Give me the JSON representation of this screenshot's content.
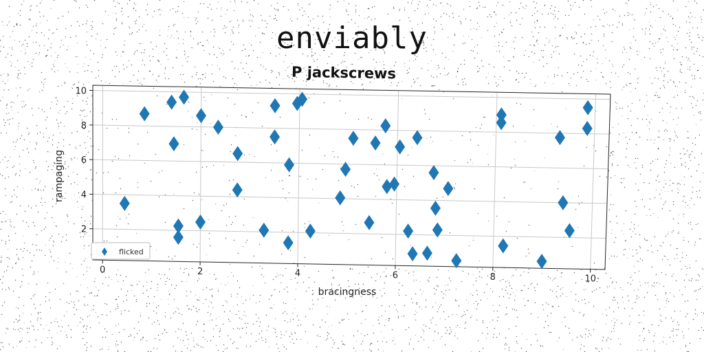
{
  "title": "enviably",
  "subtitle": "P jackscrews",
  "chart_data": {
    "type": "scatter",
    "xlabel": "bracingness",
    "ylabel": "rampaging",
    "xlim": [
      -0.2,
      10.3
    ],
    "ylim": [
      0.2,
      10.3
    ],
    "xticks": [
      0,
      2,
      4,
      6,
      8,
      10
    ],
    "yticks": [
      2,
      4,
      6,
      8,
      10
    ],
    "grid": true,
    "legend_position": "bottom-left",
    "series": [
      {
        "name": "flicked",
        "color": "#1f77b4",
        "marker": "diamond",
        "points": [
          [
            0.45,
            3.5
          ],
          [
            0.85,
            8.7
          ],
          [
            1.4,
            9.4
          ],
          [
            1.45,
            7.0
          ],
          [
            1.65,
            9.7
          ],
          [
            1.55,
            2.25
          ],
          [
            1.55,
            1.6
          ],
          [
            2.0,
            8.65
          ],
          [
            2.0,
            2.5
          ],
          [
            2.35,
            8.0
          ],
          [
            2.75,
            6.5
          ],
          [
            2.75,
            4.4
          ],
          [
            3.3,
            2.1
          ],
          [
            3.5,
            9.3
          ],
          [
            3.5,
            7.5
          ],
          [
            3.8,
            5.9
          ],
          [
            3.8,
            1.4
          ],
          [
            3.95,
            9.45
          ],
          [
            4.05,
            9.7
          ],
          [
            4.25,
            2.1
          ],
          [
            4.85,
            4.05
          ],
          [
            4.95,
            5.7
          ],
          [
            5.1,
            7.5
          ],
          [
            5.45,
            2.65
          ],
          [
            5.55,
            7.25
          ],
          [
            5.75,
            8.25
          ],
          [
            5.8,
            4.75
          ],
          [
            5.95,
            4.9
          ],
          [
            6.05,
            7.05
          ],
          [
            6.25,
            2.2
          ],
          [
            6.35,
            0.9
          ],
          [
            6.4,
            7.6
          ],
          [
            6.65,
            0.95
          ],
          [
            6.75,
            5.6
          ],
          [
            6.8,
            3.55
          ],
          [
            6.85,
            2.3
          ],
          [
            7.05,
            4.7
          ],
          [
            7.25,
            0.55
          ],
          [
            8.1,
            9.0
          ],
          [
            8.1,
            8.55
          ],
          [
            8.2,
            1.45
          ],
          [
            9.0,
            0.6
          ],
          [
            9.3,
            7.75
          ],
          [
            9.4,
            4.0
          ],
          [
            9.55,
            2.4
          ],
          [
            9.85,
            9.5
          ],
          [
            9.85,
            8.3
          ]
        ]
      }
    ]
  }
}
